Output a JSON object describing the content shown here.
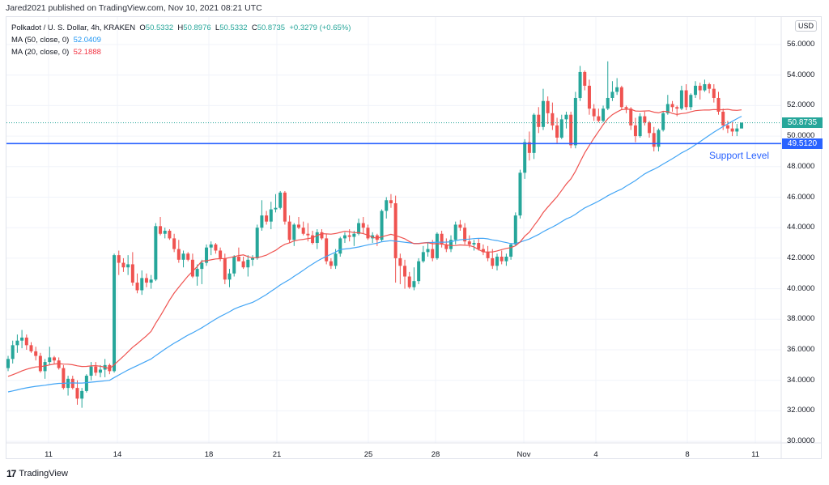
{
  "header": {
    "published": "Jared2021 published on TradingView.com, Nov 10, 2021 08:21 UTC"
  },
  "legend": {
    "symbol": "Polkadot / U. S. Dollar, 4h, KRAKEN",
    "o_label": "O",
    "o": "50.5332",
    "h_label": "H",
    "h": "50.8976",
    "l_label": "L",
    "l": "50.5332",
    "c_label": "C",
    "c": "50.8735",
    "change": "+0.3279 (+0.65%)",
    "ma50_label": "MA (50, close, 0)",
    "ma50": "52.0409",
    "ma20_label": "MA (20, close, 0)",
    "ma20": "52.1888"
  },
  "axis": {
    "currency": "USD",
    "y_ticks": [
      "56.0000",
      "54.0000",
      "52.0000",
      "50.0000",
      "48.0000",
      "46.0000",
      "44.0000",
      "42.0000",
      "40.0000",
      "38.0000",
      "36.0000",
      "34.0000",
      "32.0000",
      "30.0000"
    ],
    "x_ticks": [
      "11",
      "14",
      "18",
      "21",
      "25",
      "28",
      "Nov",
      "4",
      "8",
      "11"
    ]
  },
  "price_tags": {
    "last": "50.8735",
    "support": "49.5120"
  },
  "annotation": {
    "support_label": "Support Level"
  },
  "brand": {
    "logo_text": "TradingView",
    "logo_glyph": "17"
  },
  "colors": {
    "up": "#26a69a",
    "down": "#ef5350",
    "ma50": "#42a5f5",
    "ma20": "#ef5350",
    "support": "#2962ff",
    "grid": "#f0f3fa"
  },
  "chart_data": {
    "type": "candlestick",
    "title": "Polkadot / U. S. Dollar, 4h, KRAKEN",
    "xlabel": "",
    "ylabel": "USD",
    "ylim": [
      30,
      56.5
    ],
    "x_ticks": [
      {
        "label": "11",
        "x": 60
      },
      {
        "label": "14",
        "x": 145
      },
      {
        "label": "18",
        "x": 258
      },
      {
        "label": "21",
        "x": 342
      },
      {
        "label": "25",
        "x": 455
      },
      {
        "label": "28",
        "x": 538
      },
      {
        "label": "Nov",
        "x": 647
      },
      {
        "label": "4",
        "x": 736
      },
      {
        "label": "8",
        "x": 849
      },
      {
        "label": "11",
        "x": 933
      }
    ],
    "horizontal_lines": [
      {
        "name": "Support Level",
        "value": 49.512
      }
    ],
    "last_price": 50.8735,
    "ohlc": [
      [
        34.8,
        35.6,
        34.6,
        35.4
      ],
      [
        35.4,
        36.6,
        35.1,
        36.3
      ],
      [
        36.3,
        37.0,
        35.8,
        36.6
      ],
      [
        36.6,
        37.3,
        36.1,
        36.8
      ],
      [
        36.8,
        37.0,
        36.0,
        36.3
      ],
      [
        36.3,
        36.5,
        35.8,
        35.9
      ],
      [
        35.9,
        36.2,
        35.3,
        35.6
      ],
      [
        35.6,
        35.8,
        34.5,
        34.6
      ],
      [
        34.6,
        35.4,
        34.1,
        35.2
      ],
      [
        35.2,
        36.2,
        35.0,
        35.5
      ],
      [
        35.5,
        35.6,
        35.1,
        35.3
      ],
      [
        35.3,
        35.5,
        34.7,
        34.8
      ],
      [
        34.8,
        35.0,
        33.4,
        33.5
      ],
      [
        33.5,
        34.3,
        33.0,
        34.1
      ],
      [
        34.1,
        34.3,
        33.4,
        33.5
      ],
      [
        33.5,
        34.0,
        32.4,
        32.8
      ],
      [
        32.8,
        33.5,
        32.2,
        33.3
      ],
      [
        33.3,
        34.4,
        33.2,
        34.3
      ],
      [
        34.3,
        35.2,
        34.0,
        34.9
      ],
      [
        34.9,
        35.2,
        34.3,
        34.5
      ],
      [
        34.5,
        35.0,
        34.2,
        34.7
      ],
      [
        34.7,
        35.4,
        34.2,
        35.0
      ],
      [
        35.0,
        35.1,
        34.4,
        34.6
      ],
      [
        34.6,
        42.3,
        34.5,
        42.2
      ],
      [
        42.2,
        42.5,
        40.9,
        41.7
      ],
      [
        41.7,
        42.0,
        41.1,
        41.4
      ],
      [
        41.4,
        42.2,
        40.9,
        41.6
      ],
      [
        41.6,
        42.4,
        40.2,
        40.4
      ],
      [
        40.4,
        41.0,
        39.7,
        39.9
      ],
      [
        39.9,
        41.2,
        39.6,
        40.7
      ],
      [
        40.7,
        41.0,
        40.1,
        40.4
      ],
      [
        40.4,
        40.9,
        40.0,
        40.6
      ],
      [
        40.6,
        44.3,
        40.5,
        44.1
      ],
      [
        44.1,
        44.7,
        43.5,
        43.6
      ],
      [
        43.6,
        44.0,
        43.3,
        43.8
      ],
      [
        43.8,
        43.9,
        43.2,
        43.3
      ],
      [
        43.3,
        43.6,
        42.4,
        42.6
      ],
      [
        42.6,
        43.2,
        41.7,
        41.9
      ],
      [
        41.9,
        42.5,
        41.4,
        42.3
      ],
      [
        42.3,
        42.4,
        41.8,
        41.9
      ],
      [
        41.9,
        42.3,
        40.7,
        40.8
      ],
      [
        40.8,
        41.6,
        40.2,
        41.3
      ],
      [
        41.3,
        41.9,
        40.3,
        41.7
      ],
      [
        41.7,
        42.9,
        41.5,
        42.7
      ],
      [
        42.7,
        43.1,
        42.2,
        42.9
      ],
      [
        42.9,
        43.0,
        42.3,
        42.5
      ],
      [
        42.5,
        42.7,
        41.8,
        42.0
      ],
      [
        42.0,
        42.3,
        40.3,
        40.6
      ],
      [
        40.6,
        41.3,
        40.1,
        41.0
      ],
      [
        41.0,
        42.2,
        40.8,
        42.1
      ],
      [
        42.1,
        42.7,
        41.8,
        41.8
      ],
      [
        41.8,
        42.1,
        41.3,
        41.4
      ],
      [
        41.4,
        42.2,
        40.8,
        41.9
      ],
      [
        41.9,
        42.2,
        41.5,
        42.0
      ],
      [
        42.0,
        44.2,
        41.9,
        44.0
      ],
      [
        44.0,
        45.8,
        43.8,
        44.8
      ],
      [
        44.8,
        45.1,
        44.2,
        44.4
      ],
      [
        44.4,
        45.7,
        43.9,
        45.2
      ],
      [
        45.2,
        46.2,
        45.0,
        45.3
      ],
      [
        45.3,
        46.4,
        45.2,
        46.3
      ],
      [
        46.3,
        46.4,
        44.2,
        44.4
      ],
      [
        44.4,
        44.8,
        43.0,
        43.2
      ],
      [
        43.2,
        44.3,
        42.8,
        44.2
      ],
      [
        44.2,
        44.7,
        43.9,
        44.0
      ],
      [
        44.0,
        44.4,
        43.5,
        43.6
      ],
      [
        43.6,
        44.3,
        43.1,
        43.5
      ],
      [
        43.5,
        43.8,
        42.9,
        43.0
      ],
      [
        43.0,
        43.9,
        42.6,
        43.7
      ],
      [
        43.7,
        43.9,
        43.2,
        43.3
      ],
      [
        43.3,
        43.6,
        41.6,
        41.8
      ],
      [
        41.8,
        42.0,
        41.3,
        41.5
      ],
      [
        41.5,
        42.6,
        41.3,
        42.3
      ],
      [
        42.3,
        43.4,
        42.1,
        43.3
      ],
      [
        43.3,
        43.7,
        43.0,
        43.5
      ],
      [
        43.5,
        43.9,
        43.1,
        43.4
      ],
      [
        43.4,
        43.8,
        42.8,
        43.6
      ],
      [
        43.6,
        44.6,
        43.5,
        44.3
      ],
      [
        44.3,
        44.7,
        43.6,
        44.0
      ],
      [
        44.0,
        44.2,
        43.2,
        43.3
      ],
      [
        43.3,
        43.7,
        43.0,
        43.5
      ],
      [
        43.5,
        43.6,
        42.8,
        43.2
      ],
      [
        43.2,
        45.2,
        43.1,
        45.1
      ],
      [
        45.1,
        46.0,
        44.6,
        45.8
      ],
      [
        45.8,
        46.2,
        45.3,
        45.6
      ],
      [
        45.6,
        46.1,
        40.4,
        42.0
      ],
      [
        42.0,
        42.3,
        40.3,
        41.5
      ],
      [
        41.5,
        41.9,
        40.0,
        40.8
      ],
      [
        40.8,
        41.1,
        40.0,
        40.1
      ],
      [
        40.1,
        41.4,
        39.9,
        40.5
      ],
      [
        40.5,
        42.0,
        40.3,
        41.8
      ],
      [
        41.8,
        42.8,
        41.7,
        42.4
      ],
      [
        42.4,
        43.0,
        42.1,
        42.6
      ],
      [
        42.6,
        43.2,
        41.8,
        42.0
      ],
      [
        42.0,
        43.7,
        41.9,
        43.6
      ],
      [
        43.6,
        43.8,
        42.7,
        42.9
      ],
      [
        42.9,
        43.3,
        42.4,
        42.6
      ],
      [
        42.6,
        43.5,
        42.4,
        43.2
      ],
      [
        43.2,
        44.4,
        42.9,
        44.2
      ],
      [
        44.2,
        44.5,
        43.8,
        44.0
      ],
      [
        44.0,
        44.3,
        42.9,
        43.1
      ],
      [
        43.1,
        43.5,
        42.7,
        42.9
      ],
      [
        42.9,
        43.2,
        42.5,
        43.0
      ],
      [
        43.0,
        43.3,
        42.5,
        42.6
      ],
      [
        42.6,
        42.9,
        42.2,
        42.4
      ],
      [
        42.4,
        42.8,
        41.8,
        42.0
      ],
      [
        42.0,
        42.6,
        41.3,
        41.5
      ],
      [
        41.5,
        42.3,
        41.2,
        42.1
      ],
      [
        42.1,
        42.5,
        41.6,
        41.8
      ],
      [
        41.8,
        42.3,
        41.5,
        42.1
      ],
      [
        42.1,
        43.0,
        41.9,
        42.9
      ],
      [
        42.9,
        45.0,
        42.8,
        44.8
      ],
      [
        44.8,
        47.8,
        44.6,
        47.6
      ],
      [
        47.6,
        49.8,
        47.2,
        49.6
      ],
      [
        49.6,
        50.3,
        48.4,
        48.9
      ],
      [
        48.9,
        51.5,
        48.5,
        51.4
      ],
      [
        51.4,
        51.9,
        50.2,
        50.6
      ],
      [
        50.6,
        53.1,
        50.4,
        52.3
      ],
      [
        52.3,
        52.6,
        50.8,
        51.5
      ],
      [
        51.5,
        52.2,
        50.4,
        50.7
      ],
      [
        50.7,
        51.2,
        49.5,
        49.9
      ],
      [
        49.9,
        51.4,
        49.8,
        51.1
      ],
      [
        51.1,
        51.6,
        50.5,
        51.4
      ],
      [
        51.4,
        51.6,
        49.2,
        49.4
      ],
      [
        49.4,
        52.9,
        49.2,
        52.5
      ],
      [
        52.5,
        54.6,
        52.3,
        54.2
      ],
      [
        54.2,
        54.3,
        53.0,
        53.3
      ],
      [
        53.3,
        53.7,
        51.4,
        51.8
      ],
      [
        51.8,
        52.1,
        51.0,
        51.3
      ],
      [
        51.3,
        51.8,
        50.9,
        51.0
      ],
      [
        51.0,
        52.0,
        50.9,
        51.8
      ],
      [
        51.8,
        54.9,
        51.7,
        52.5
      ],
      [
        52.5,
        53.6,
        52.3,
        52.9
      ],
      [
        52.9,
        53.8,
        52.7,
        53.2
      ],
      [
        53.2,
        53.3,
        51.7,
        51.9
      ],
      [
        51.9,
        52.0,
        51.5,
        51.8
      ],
      [
        51.8,
        51.9,
        50.4,
        50.7
      ],
      [
        50.7,
        51.2,
        49.6,
        50.0
      ],
      [
        50.0,
        51.5,
        49.9,
        51.3
      ],
      [
        51.3,
        51.6,
        50.7,
        50.9
      ],
      [
        50.9,
        51.0,
        49.9,
        50.2
      ],
      [
        50.2,
        50.6,
        49.0,
        49.3
      ],
      [
        49.3,
        50.5,
        49.0,
        50.4
      ],
      [
        50.4,
        51.6,
        50.3,
        51.5
      ],
      [
        51.5,
        52.7,
        51.4,
        52.1
      ],
      [
        52.1,
        52.3,
        51.6,
        51.9
      ],
      [
        51.9,
        52.0,
        51.3,
        51.8
      ],
      [
        51.8,
        53.3,
        51.7,
        53.0
      ],
      [
        53.0,
        53.4,
        51.7,
        51.9
      ],
      [
        51.9,
        52.8,
        51.7,
        52.7
      ],
      [
        52.7,
        53.6,
        52.5,
        53.3
      ],
      [
        53.3,
        53.5,
        52.4,
        53.0
      ],
      [
        53.0,
        53.7,
        52.9,
        53.4
      ],
      [
        53.4,
        53.5,
        52.8,
        53.1
      ],
      [
        53.1,
        53.4,
        52.2,
        52.5
      ],
      [
        52.5,
        52.9,
        51.4,
        51.6
      ],
      [
        51.6,
        51.8,
        50.4,
        50.7
      ],
      [
        50.7,
        51.0,
        50.2,
        50.5
      ],
      [
        50.5,
        50.9,
        50.0,
        50.3
      ],
      [
        50.3,
        50.8,
        50.0,
        50.5
      ],
      [
        50.5,
        50.9,
        50.5,
        50.87
      ]
    ]
  }
}
